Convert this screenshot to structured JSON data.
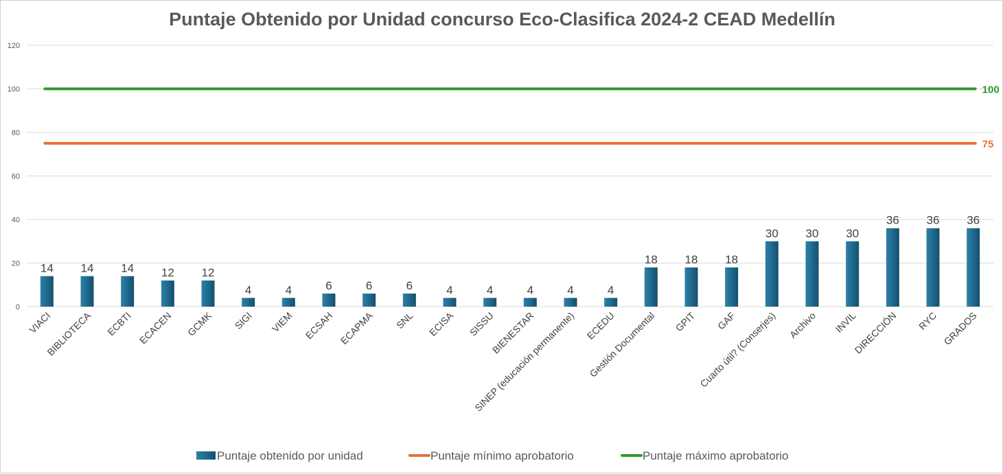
{
  "chart_data": {
    "type": "bar",
    "title": "Puntaje Obtenido por Unidad concurso Eco-Clasifica 2024-2 CEAD Medellín",
    "xlabel": "",
    "ylabel": "",
    "ylim": [
      0,
      120
    ],
    "yticks": [
      "0",
      "20",
      "40",
      "60",
      "80",
      "100",
      "120"
    ],
    "grid": true,
    "legend_position": "bottom",
    "categories": [
      "VIACI",
      "BIBLIOTECA",
      "ECBTI",
      "ECACEN",
      "GCMK",
      "SIGI",
      "VIEM",
      "ECSAH",
      "ECAPMA",
      "SNL",
      "ECISA",
      "SISSU",
      "BIENESTAR",
      "SINEP (educación permanente)",
      "ECEDU",
      "Gestión Documental",
      "GPIT",
      "GAF",
      "Cuarto útil? (Conserjes)",
      "Archivo",
      "INVIL",
      "DIRECCIÓN",
      "RYC",
      "GRADOS"
    ],
    "series": [
      {
        "name": "Puntaje obtenido por unidad",
        "type": "bar",
        "color": "#1f5f80",
        "values": [
          14,
          14,
          14,
          12,
          12,
          4,
          4,
          6,
          6,
          6,
          4,
          4,
          4,
          4,
          4,
          18,
          18,
          18,
          30,
          30,
          30,
          36,
          36,
          36
        ],
        "labels": [
          "14",
          "14",
          "14",
          "12",
          "12",
          "4",
          "4",
          "6",
          "6",
          "6",
          "4",
          "4",
          "4",
          "4",
          "4",
          "18",
          "18",
          "18",
          "30",
          "30",
          "30",
          "36",
          "36",
          "36"
        ]
      },
      {
        "name": "Puntaje mínimo aprobatorio",
        "type": "line",
        "color": "#e8703a",
        "value": 75,
        "label": "75"
      },
      {
        "name": "Puntaje máximo aprobatorio",
        "type": "line",
        "color": "#2e9a2e",
        "value": 100,
        "label": "100"
      }
    ]
  }
}
